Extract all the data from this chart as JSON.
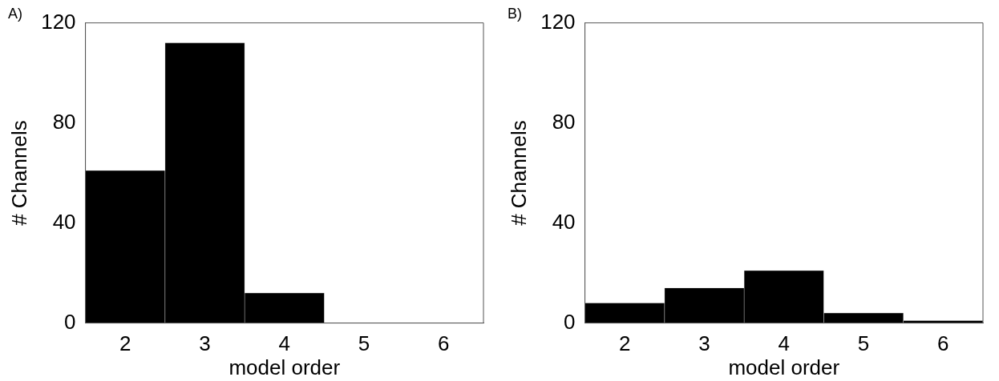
{
  "chart_data": [
    {
      "type": "histogram",
      "title": "A)",
      "xlabel": "model order",
      "ylabel": "# Channels",
      "bins": [
        1.5,
        2.5,
        3.5,
        4.5,
        5.5,
        6.5
      ],
      "values": [
        61,
        112,
        12,
        0,
        0
      ],
      "color": "#000000",
      "xlim": [
        1.5,
        6.5
      ],
      "xticks": [
        2,
        3,
        4,
        5,
        6
      ],
      "ylim": [
        0,
        120
      ],
      "yticks": [
        0,
        40,
        80,
        120
      ]
    },
    {
      "type": "histogram",
      "title": "B)",
      "xlabel": "model order",
      "ylabel": "# Channels",
      "bins": [
        1.5,
        2.5,
        3.5,
        4.5,
        5.5,
        6.5
      ],
      "values": [
        8,
        14,
        21,
        4,
        1
      ],
      "color": "#000000",
      "xlim": [
        1.5,
        6.5
      ],
      "xticks": [
        2,
        3,
        4,
        5,
        6
      ],
      "ylim": [
        0,
        120
      ],
      "yticks": [
        0,
        40,
        80,
        120
      ]
    }
  ]
}
